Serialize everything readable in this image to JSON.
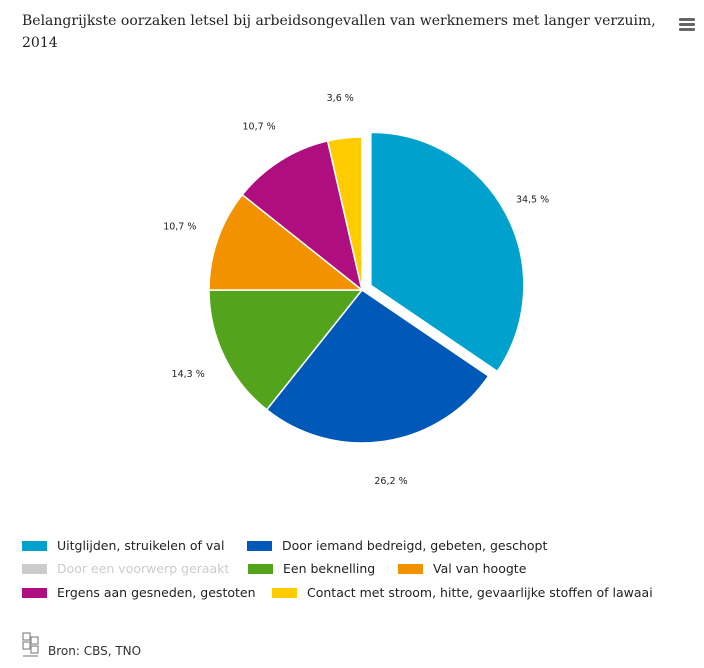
{
  "title": "Belangrijkste oorzaken letsel bij arbeidsongevallen van werknemers met langer verzuim, 2014",
  "source": "Bron: CBS, TNO",
  "chart_data": {
    "type": "pie",
    "title": "Belangrijkste oorzaken letsel bij arbeidsongevallen van werknemers met langer verzuim, 2014",
    "slices": [
      {
        "name": "Uitglijden, struikelen of val",
        "value": 34.5,
        "label": "34,5 %",
        "color": "#00a1cd",
        "visible": true,
        "exploded": true
      },
      {
        "name": "Door iemand bedreigd, gebeten, geschopt",
        "value": 26.2,
        "label": "26,2 %",
        "color": "#0058b8",
        "visible": true,
        "exploded": false
      },
      {
        "name": "Door een voorwerp geraakt",
        "value": 0,
        "label": "",
        "color": "#cccccc",
        "visible": false,
        "exploded": false
      },
      {
        "name": "Een beknelling",
        "value": 14.3,
        "label": "14,3 %",
        "color": "#53a31d",
        "visible": true,
        "exploded": false
      },
      {
        "name": "Val van hoogte",
        "value": 10.7,
        "label": "10,7 %",
        "color": "#f39200",
        "visible": true,
        "exploded": false
      },
      {
        "name": "Ergens aan gesneden, gestoten",
        "value": 10.7,
        "label": "10,7 %",
        "color": "#af0e80",
        "visible": true,
        "exploded": false
      },
      {
        "name": "Contact met stroom, hitte, gevaarlijke stoffen of lawaai",
        "value": 3.6,
        "label": "3,6 %",
        "color": "#ffcc00",
        "visible": true,
        "exploded": false
      }
    ]
  }
}
